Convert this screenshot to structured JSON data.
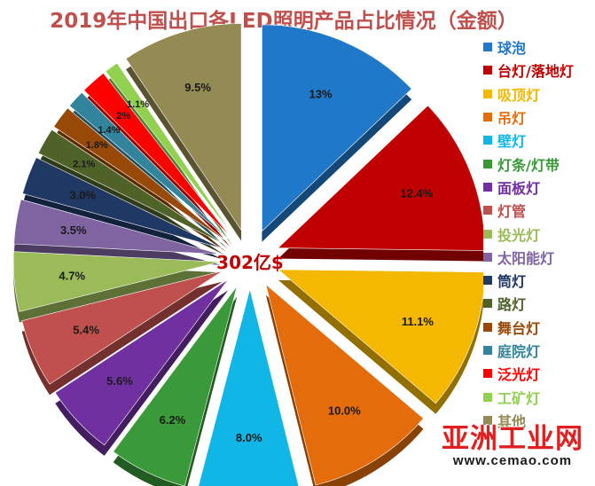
{
  "title": "2019年中国出口各LED照明产品占比情况（金额）",
  "center_label": "302亿$",
  "watermark": {
    "name": "亚洲工业网",
    "url": "www.cemao.com"
  },
  "chart_data": {
    "type": "pie",
    "exploded": true,
    "legend_position": "right",
    "categories": [
      "球泡",
      "台灯/落地灯",
      "吸顶灯",
      "吊灯",
      "壁灯",
      "灯条/灯带",
      "面板灯",
      "灯管",
      "投光灯",
      "太阳能灯",
      "筒灯",
      "路灯",
      "舞台灯",
      "庭院灯",
      "泛光灯",
      "工矿灯",
      "其他"
    ],
    "values": [
      13,
      12.4,
      11.1,
      10.0,
      8.0,
      6.2,
      5.6,
      5.4,
      4.7,
      3.5,
      3.0,
      2.1,
      1.8,
      1.4,
      2,
      1.1,
      9.5
    ],
    "labels": [
      "13%",
      "12.4%",
      "11.1%",
      "10.0%",
      "8.0%",
      "6.2%",
      "5.6%",
      "5.4%",
      "4.7%",
      "3.5%",
      "3.0%",
      "2.1%",
      "1.8%",
      "1.4%",
      "2%",
      "1.1%",
      "9.5%"
    ],
    "colors": [
      "#1f78c8",
      "#c00000",
      "#f5b800",
      "#e46c0a",
      "#10b6e6",
      "#3a9a3a",
      "#7030a0",
      "#c0504d",
      "#9bbb59",
      "#8064a2",
      "#1f3864",
      "#4f6228",
      "#984807",
      "#31849b",
      "#ff0000",
      "#92d050",
      "#948a54"
    ]
  }
}
